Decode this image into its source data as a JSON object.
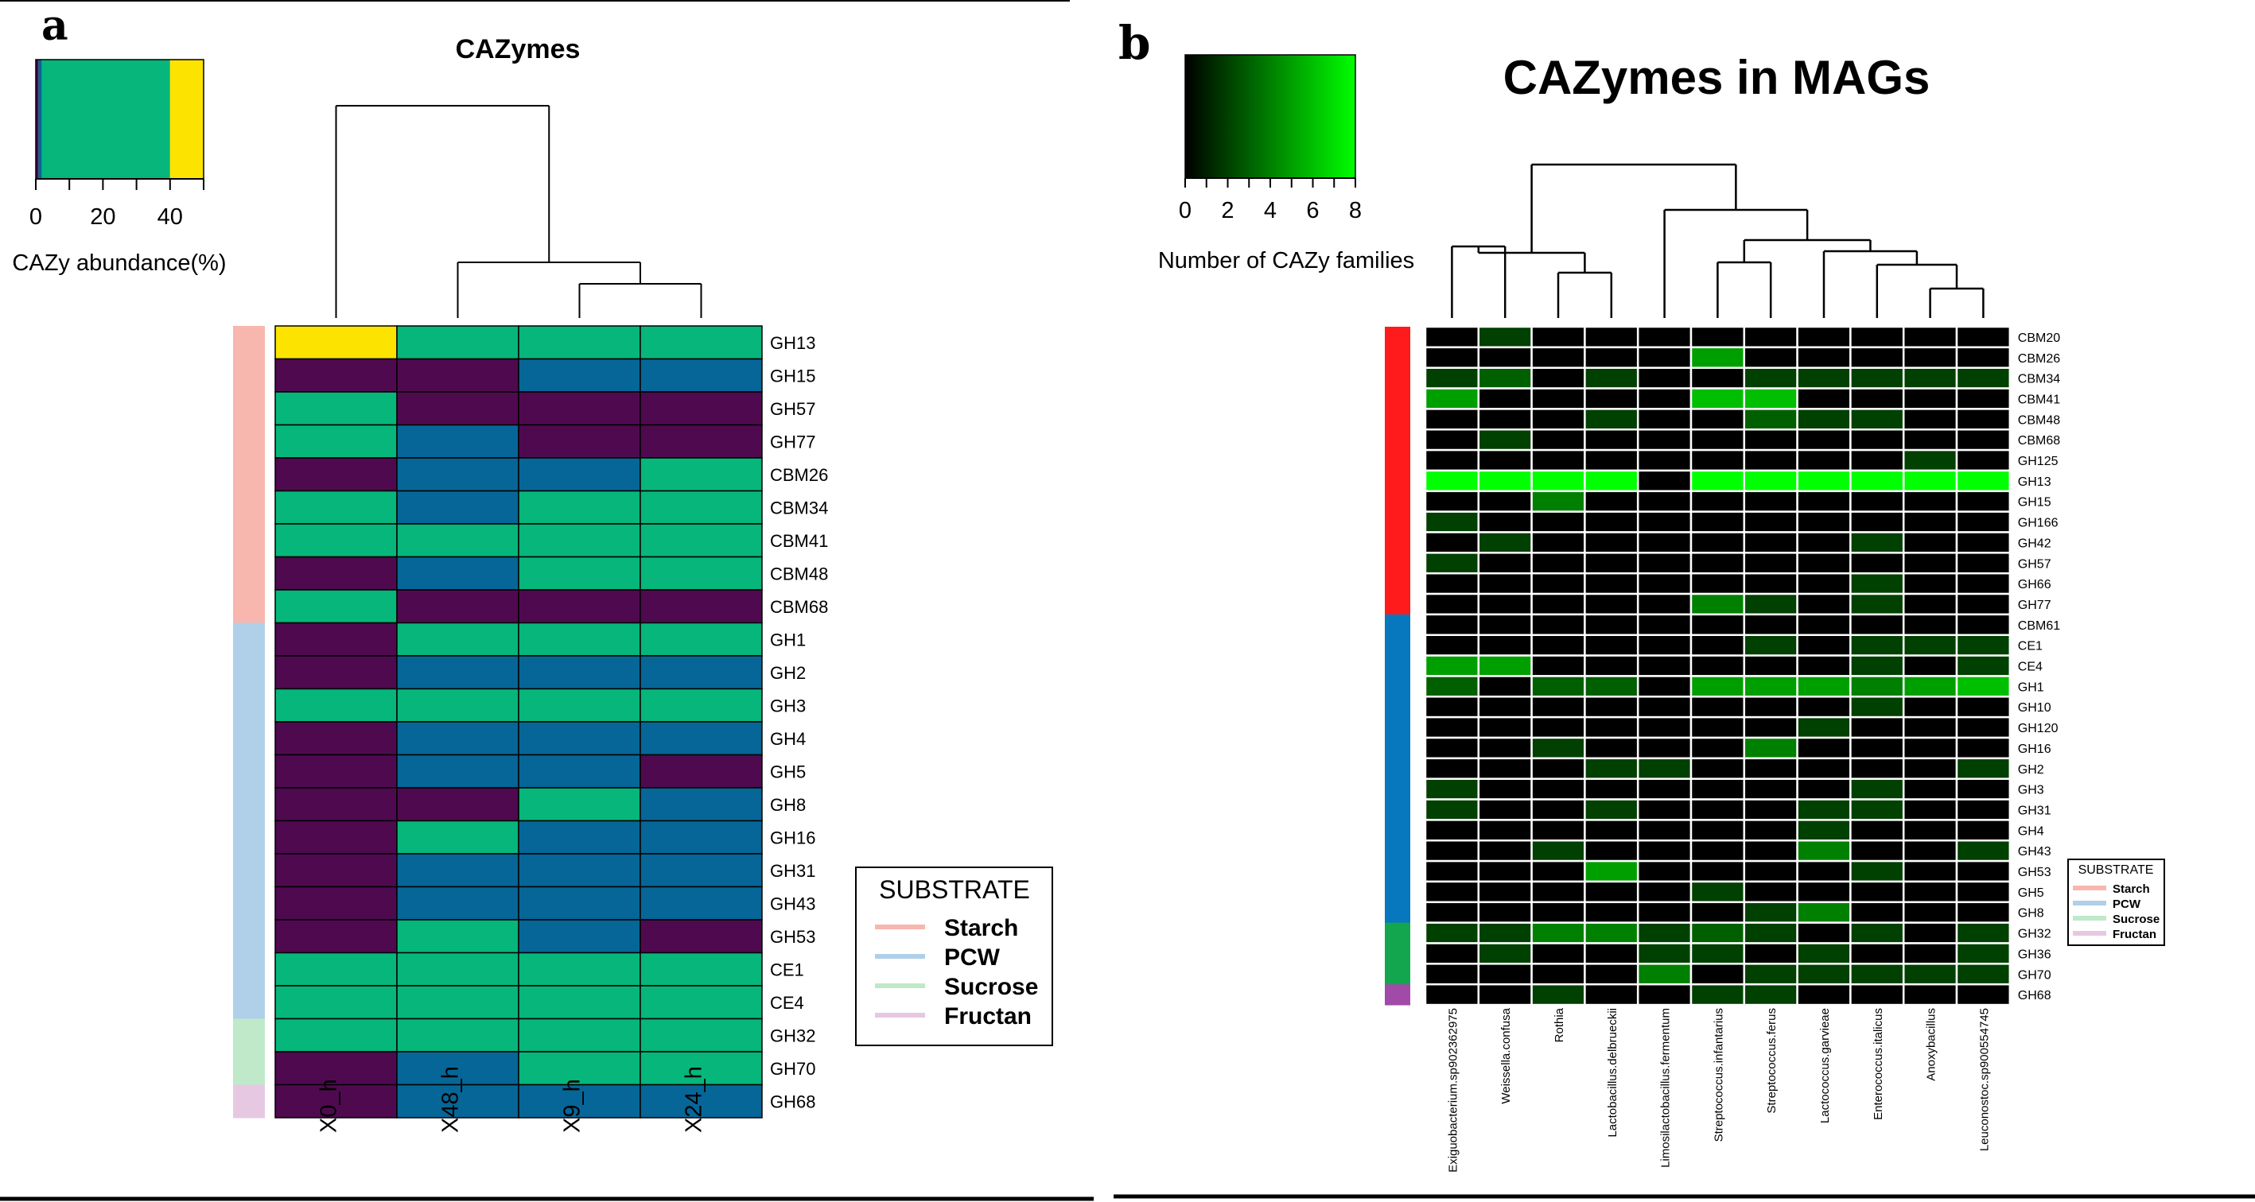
{
  "colors": {
    "purple": "#4f0a4f",
    "blue": "#066697",
    "green": "#06b67a",
    "yellow": "#fde300",
    "starch_a": "#f7b6ae",
    "pcw_a": "#afd0e8",
    "sucrose_a": "#bfe9c8",
    "fructan_a": "#e6c8e2",
    "starch_b": "#ff1b1b",
    "pcw_b": "#0878be",
    "sucrose_b": "#14a64e",
    "fructan_b": "#a24aa8",
    "heat_low": "#000000",
    "heat_high": "#00ff00"
  },
  "chart_data": [
    {
      "type": "heatmap",
      "panel_label": "a",
      "title": "CAZymes",
      "columns": [
        "X0_h",
        "X48_h",
        "X9_h",
        "X24_h"
      ],
      "rows": [
        "GH13",
        "GH15",
        "GH57",
        "GH77",
        "CBM26",
        "CBM34",
        "CBM41",
        "CBM48",
        "CBM68",
        "GH1",
        "GH2",
        "GH3",
        "GH4",
        "GH5",
        "GH8",
        "GH16",
        "GH31",
        "GH43",
        "GH53",
        "CE1",
        "CE4",
        "GH32",
        "GH70",
        "GH68"
      ],
      "row_substrate": [
        "Starch",
        "Starch",
        "Starch",
        "Starch",
        "Starch",
        "Starch",
        "Starch",
        "Starch",
        "Starch",
        "PCW",
        "PCW",
        "PCW",
        "PCW",
        "PCW",
        "PCW",
        "PCW",
        "PCW",
        "PCW",
        "PCW",
        "PCW",
        "PCW",
        "Sucrose",
        "Sucrose",
        "Fructan"
      ],
      "cell_class": [
        [
          "yellow",
          "green",
          "green",
          "green"
        ],
        [
          "purple",
          "purple",
          "blue",
          "blue"
        ],
        [
          "green",
          "purple",
          "purple",
          "purple"
        ],
        [
          "green",
          "blue",
          "purple",
          "purple"
        ],
        [
          "purple",
          "blue",
          "blue",
          "green"
        ],
        [
          "green",
          "blue",
          "green",
          "green"
        ],
        [
          "green",
          "green",
          "green",
          "green"
        ],
        [
          "purple",
          "blue",
          "green",
          "green"
        ],
        [
          "green",
          "purple",
          "purple",
          "purple"
        ],
        [
          "purple",
          "green",
          "green",
          "green"
        ],
        [
          "purple",
          "blue",
          "blue",
          "blue"
        ],
        [
          "green",
          "green",
          "green",
          "green"
        ],
        [
          "purple",
          "blue",
          "blue",
          "blue"
        ],
        [
          "purple",
          "blue",
          "blue",
          "purple"
        ],
        [
          "purple",
          "purple",
          "green",
          "blue"
        ],
        [
          "purple",
          "green",
          "blue",
          "blue"
        ],
        [
          "purple",
          "blue",
          "blue",
          "blue"
        ],
        [
          "purple",
          "blue",
          "blue",
          "blue"
        ],
        [
          "purple",
          "green",
          "blue",
          "purple"
        ],
        [
          "green",
          "green",
          "green",
          "green"
        ],
        [
          "green",
          "green",
          "green",
          "green"
        ],
        [
          "green",
          "green",
          "green",
          "green"
        ],
        [
          "purple",
          "blue",
          "green",
          "green"
        ],
        [
          "purple",
          "blue",
          "blue",
          "blue"
        ]
      ],
      "color_key": {
        "label": "CAZy abundance(%)",
        "ticks": [
          0,
          20,
          40
        ],
        "range": [
          0,
          50
        ],
        "segments": [
          {
            "from": 0,
            "to": 0.8,
            "class": "purple"
          },
          {
            "from": 0.8,
            "to": 1.8,
            "class": "blue"
          },
          {
            "from": 1.8,
            "to": 40,
            "class": "green"
          },
          {
            "from": 40,
            "to": 50,
            "class": "yellow"
          }
        ]
      },
      "dendrogram": "(X0_h,(X48_h,(X9_h,X24_h)))",
      "legend": {
        "title": "SUBSTRATE",
        "entries": [
          "Starch",
          "PCW",
          "Sucrose",
          "Fructan"
        ],
        "placement": "right"
      }
    },
    {
      "type": "heatmap",
      "panel_label": "b",
      "title": "CAZymes in MAGs",
      "columns": [
        "Exiguobacterium.sp902362975",
        "Weissella.confusa",
        "Rothia",
        "Lactobacillus.delbrueckii",
        "Limosilactobacillus.fermentum",
        "Streptococcus.infantarius",
        "Streptococcus.ferus",
        "Lactococcus.garvieae",
        "Enterococcus.italicus",
        "Anoxybacillus",
        "Leuconostoc.sp900554745"
      ],
      "rows": [
        "CBM20",
        "CBM26",
        "CBM34",
        "CBM41",
        "CBM48",
        "CBM68",
        "GH125",
        "GH13",
        "GH15",
        "GH166",
        "GH42",
        "GH57",
        "GH66",
        "GH77",
        "CBM61",
        "CE1",
        "CE4",
        "GH1",
        "GH10",
        "GH120",
        "GH16",
        "GH2",
        "GH3",
        "GH31",
        "GH4",
        "GH43",
        "GH53",
        "GH5",
        "GH8",
        "GH32",
        "GH36",
        "GH70",
        "GH68"
      ],
      "row_substrate": [
        "Starch",
        "Starch",
        "Starch",
        "Starch",
        "Starch",
        "Starch",
        "Starch",
        "Starch",
        "Starch",
        "Starch",
        "Starch",
        "Starch",
        "Starch",
        "Starch",
        "PCW",
        "PCW",
        "PCW",
        "PCW",
        "PCW",
        "PCW",
        "PCW",
        "PCW",
        "PCW",
        "PCW",
        "PCW",
        "PCW",
        "PCW",
        "PCW",
        "PCW",
        "Sucrose",
        "Sucrose",
        "Sucrose",
        "Fructan"
      ],
      "values": [
        [
          0,
          2,
          0,
          0,
          0,
          0,
          0,
          0,
          0,
          0,
          0
        ],
        [
          0,
          0,
          0,
          0,
          0,
          5,
          0,
          0,
          0,
          0,
          0
        ],
        [
          2,
          3,
          0,
          2,
          0,
          0,
          2,
          2,
          2,
          2,
          2
        ],
        [
          5,
          0,
          0,
          0,
          0,
          6,
          6,
          0,
          0,
          0,
          0
        ],
        [
          0,
          0,
          0,
          2,
          0,
          0,
          3,
          2,
          2,
          0,
          0
        ],
        [
          0,
          2,
          0,
          0,
          0,
          0,
          0,
          0,
          0,
          0,
          0
        ],
        [
          0,
          0,
          0,
          0,
          0,
          0,
          0,
          0,
          0,
          2,
          0
        ],
        [
          8,
          8,
          8,
          8,
          0,
          8,
          8,
          8,
          8,
          8,
          8
        ],
        [
          0,
          0,
          4,
          0,
          0,
          0,
          0,
          0,
          0,
          0,
          0
        ],
        [
          2,
          0,
          0,
          0,
          0,
          0,
          0,
          0,
          0,
          0,
          0
        ],
        [
          0,
          2,
          0,
          0,
          0,
          0,
          0,
          0,
          2,
          0,
          0
        ],
        [
          2,
          0,
          0,
          0,
          0,
          0,
          0,
          0,
          0,
          0,
          0
        ],
        [
          0,
          0,
          0,
          0,
          0,
          0,
          0,
          0,
          2,
          0,
          0
        ],
        [
          0,
          0,
          0,
          0,
          0,
          4,
          2,
          0,
          2,
          0,
          0
        ],
        [
          0,
          0,
          0,
          0,
          0,
          0,
          0,
          0,
          0,
          0,
          0
        ],
        [
          0,
          0,
          0,
          0,
          0,
          0,
          2,
          0,
          2,
          2,
          2
        ],
        [
          5,
          5,
          0,
          0,
          0,
          0,
          0,
          0,
          2,
          0,
          2
        ],
        [
          3,
          0,
          3,
          3,
          0,
          5,
          5,
          5,
          4,
          5,
          6
        ],
        [
          0,
          0,
          0,
          0,
          0,
          0,
          0,
          0,
          2,
          0,
          0
        ],
        [
          0,
          0,
          0,
          0,
          0,
          0,
          0,
          2,
          0,
          0,
          0
        ],
        [
          0,
          0,
          2,
          0,
          0,
          0,
          4,
          0,
          0,
          0,
          0
        ],
        [
          0,
          0,
          0,
          2,
          2,
          0,
          0,
          0,
          0,
          0,
          2
        ],
        [
          2,
          0,
          0,
          0,
          0,
          0,
          0,
          0,
          2,
          0,
          0
        ],
        [
          2,
          0,
          0,
          2,
          0,
          0,
          0,
          2,
          2,
          0,
          0
        ],
        [
          0,
          0,
          0,
          0,
          0,
          0,
          0,
          2,
          0,
          0,
          0
        ],
        [
          0,
          0,
          2,
          0,
          0,
          0,
          0,
          4,
          0,
          0,
          2
        ],
        [
          0,
          0,
          0,
          5,
          0,
          0,
          0,
          0,
          2,
          0,
          0
        ],
        [
          0,
          0,
          0,
          0,
          0,
          2,
          0,
          0,
          0,
          0,
          0
        ],
        [
          0,
          0,
          0,
          0,
          0,
          0,
          2,
          4,
          0,
          0,
          0
        ],
        [
          2,
          2,
          4,
          4,
          2,
          3,
          2,
          0,
          2,
          0,
          2
        ],
        [
          0,
          2,
          0,
          0,
          2,
          2,
          0,
          2,
          0,
          0,
          2
        ],
        [
          0,
          0,
          0,
          0,
          4,
          0,
          2,
          2,
          2,
          2,
          2
        ],
        [
          0,
          0,
          2,
          0,
          0,
          2,
          2,
          0,
          0,
          0,
          0
        ]
      ],
      "color_key": {
        "label": "Number of CAZy families",
        "ticks": [
          0,
          2,
          4,
          6,
          8
        ],
        "range": [
          0,
          8
        ]
      },
      "dendrogram": "(((Exiguobacterium.sp902362975,Weissella.confusa),(Rothia,Lactobacillus.delbrueckii)),(Limosilactobacillus.fermentum,((Streptococcus.infantarius,Streptococcus.ferus),(Lactococcus.garvieae,(Enterococcus.italicus,(Anoxybacillus,Leuconostoc.sp900554745))))))",
      "legend": {
        "title": "SUBSTRATE",
        "entries": [
          "Starch",
          "PCW",
          "Sucrose",
          "Fructan"
        ],
        "placement": "right"
      }
    }
  ]
}
